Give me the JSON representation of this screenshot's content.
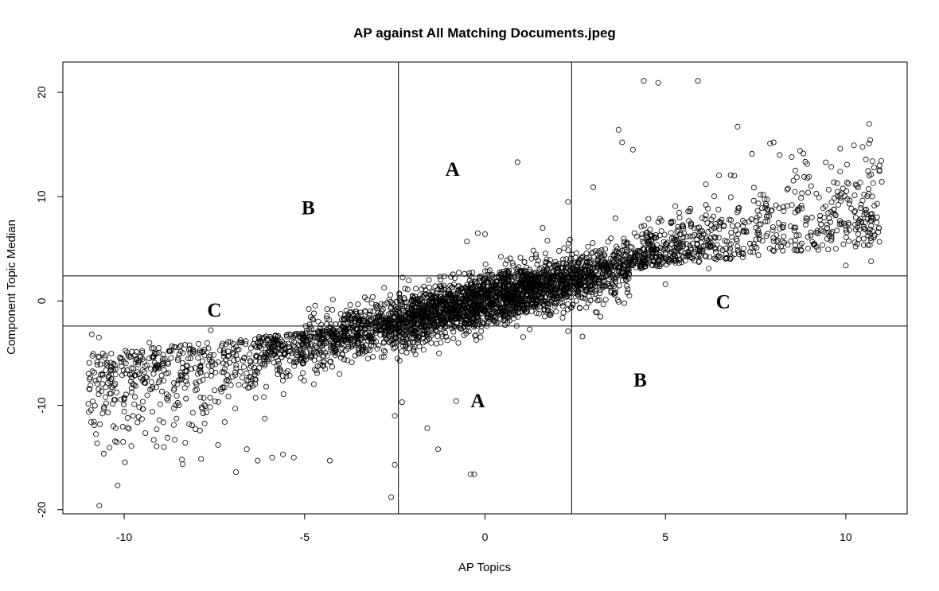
{
  "chart_data": {
    "type": "scatter",
    "title": "AP against All Matching Documents.jpeg",
    "xlabel": "AP Topics",
    "ylabel": "Component Topic Median",
    "xlim": [
      -11.7,
      11.7
    ],
    "ylim": [
      -20.4,
      22.9
    ],
    "x_ticks": [
      -10,
      -5,
      0,
      5,
      10
    ],
    "y_ticks": [
      -20,
      -10,
      0,
      10,
      20
    ],
    "x_tick_labels": [
      "-10",
      "-5",
      "0",
      "5",
      "10"
    ],
    "y_tick_labels": [
      "-20",
      "-10",
      "0",
      "10",
      "20"
    ],
    "marker": "open-circle",
    "grid": false,
    "legend": "none",
    "approx_point_count": 4200,
    "trend": {
      "slope": 0.85,
      "intercept": 0.0
    },
    "reference_lines": {
      "vertical": [
        -2.4,
        2.4
      ],
      "horizontal": [
        -2.4,
        2.4
      ]
    },
    "region_labels": [
      {
        "text": "A",
        "x": -0.9,
        "y": 12.7
      },
      {
        "text": "B",
        "x": -4.9,
        "y": 9.0
      },
      {
        "text": "C",
        "x": -7.5,
        "y": -0.8
      },
      {
        "text": "A",
        "x": -0.2,
        "y": -9.5
      },
      {
        "text": "B",
        "x": 4.3,
        "y": -7.5
      },
      {
        "text": "C",
        "x": 6.6,
        "y": 0.0
      }
    ],
    "sample_points": [
      [
        -10.9,
        -3.2
      ],
      [
        -10.7,
        -3.5
      ],
      [
        -10.5,
        -9.8
      ],
      [
        -10.3,
        -12.0
      ],
      [
        -10.0,
        -10.6
      ],
      [
        -9.8,
        -13.9
      ],
      [
        -9.6,
        -11.1
      ],
      [
        -9.3,
        -4.0
      ],
      [
        -9.1,
        -12.3
      ],
      [
        -8.9,
        -14.0
      ],
      [
        -8.6,
        -13.3
      ],
      [
        -8.4,
        -15.2
      ],
      [
        -8.2,
        -11.8
      ],
      [
        -7.9,
        -12.4
      ],
      [
        -7.6,
        -2.8
      ],
      [
        -7.4,
        -13.8
      ],
      [
        -6.9,
        -16.4
      ],
      [
        -6.6,
        -14.2
      ],
      [
        -6.3,
        -15.3
      ],
      [
        -5.9,
        -15.0
      ],
      [
        -5.6,
        -14.7
      ],
      [
        -5.3,
        -15.0
      ],
      [
        -4.3,
        -15.3
      ],
      [
        -2.3,
        -9.7
      ],
      [
        -2.6,
        -18.8
      ],
      [
        -2.5,
        -15.7
      ],
      [
        -2.5,
        -11.0
      ],
      [
        -1.6,
        -12.2
      ],
      [
        -1.3,
        -14.2
      ],
      [
        -0.4,
        -16.6
      ],
      [
        -0.3,
        -16.6
      ],
      [
        -0.8,
        -9.6
      ],
      [
        0.9,
        13.3
      ],
      [
        -0.2,
        6.5
      ],
      [
        0.0,
        6.4
      ],
      [
        -0.5,
        5.7
      ],
      [
        1.6,
        7.0
      ],
      [
        2.3,
        9.5
      ],
      [
        2.7,
        -3.4
      ],
      [
        2.3,
        -2.9
      ],
      [
        3.0,
        10.9
      ],
      [
        3.7,
        16.4
      ],
      [
        3.8,
        15.2
      ],
      [
        4.1,
        14.5
      ],
      [
        4.4,
        21.1
      ],
      [
        4.8,
        20.9
      ],
      [
        5.9,
        21.1
      ],
      [
        7.0,
        16.7
      ],
      [
        7.9,
        15.1
      ],
      [
        8.0,
        15.2
      ],
      [
        7.4,
        14.1
      ],
      [
        8.5,
        13.8
      ],
      [
        8.6,
        12.5
      ],
      [
        9.4,
        8.0
      ],
      [
        10.0,
        3.4
      ],
      [
        10.0,
        7.2
      ],
      [
        10.1,
        6.8
      ],
      [
        10.7,
        3.8
      ],
      [
        10.7,
        7.2
      ],
      [
        10.8,
        6.3
      ],
      [
        10.9,
        6.6
      ],
      [
        6.2,
        3.1
      ],
      [
        5.0,
        1.6
      ],
      [
        4.0,
        0.5
      ],
      [
        3.2,
        -1.5
      ]
    ]
  }
}
